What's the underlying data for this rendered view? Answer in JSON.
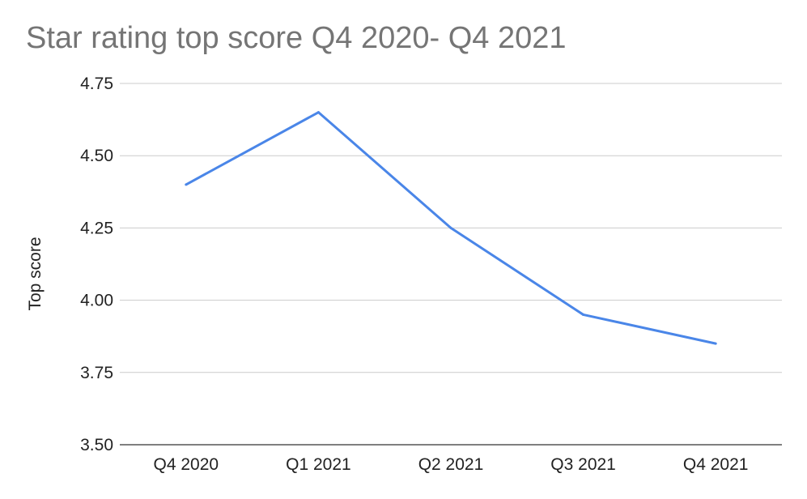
{
  "chart_data": {
    "type": "line",
    "title": "Star rating top score Q4 2020- Q4 2021",
    "xlabel": "",
    "ylabel": "Top score",
    "categories": [
      "Q4 2020",
      "Q1 2021",
      "Q2 2021",
      "Q3 2021",
      "Q4 2021"
    ],
    "series": [
      {
        "values": [
          4.4,
          4.65,
          4.25,
          3.95,
          3.85
        ],
        "color": "#4a86e8"
      }
    ],
    "ylim": [
      3.5,
      4.75
    ],
    "yticks": [
      "3.50",
      "3.75",
      "4.00",
      "4.25",
      "4.50",
      "4.75"
    ],
    "grid": true,
    "legend": "none"
  }
}
